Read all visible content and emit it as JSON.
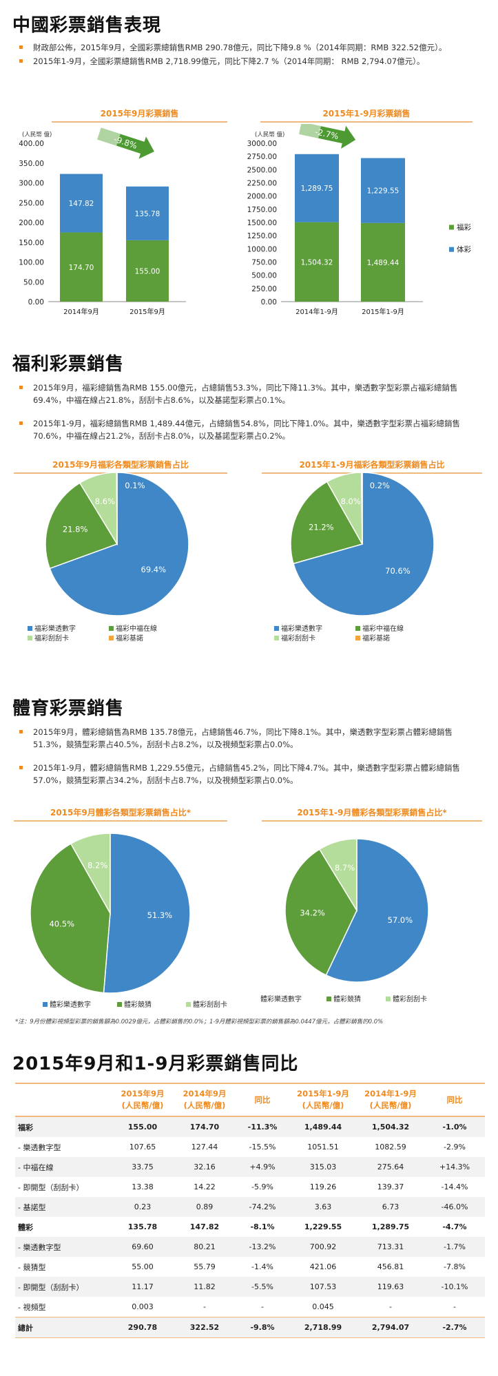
{
  "section1": {
    "title": "中國彩票銷售表現",
    "bullets": [
      "財政部公佈，2015年9月，全國彩票總銷售RMB 290.78億元，同比下降9.8 %（2014年同期：RMB 322.52億元）。",
      "2015年1-9月，全國彩票總銷售RMB 2,718.99億元，同比下降2.7 %（2014年同期： RMB 2,794.07億元）。"
    ],
    "legend": [
      "福彩",
      "体彩"
    ]
  },
  "section2": {
    "title": "福利彩票銷售",
    "bullets": [
      "2015年9月，福彩總銷售為RMB 155.00億元，占總銷售53.3%，同比下降11.3%。其中，樂透數字型彩票占福彩總銷售69.4%，中福在線占21.8%，刮刮卡占8.6%，以及基諾型彩票占0.1%。",
      "2015年1-9月，福彩總銷售RMB 1,489.44億元，占總銷售54.8%，同比下降1.0%。其中，樂透數字型彩票占福彩總銷售70.6%，中福在線占21.2%，刮刮卡占8.0%，以及基諾型彩票占0.2%。"
    ]
  },
  "section3": {
    "title": "體育彩票銷售",
    "bullets": [
      "2015年9月，體彩總銷售為RMB 135.78億元，占總銷售46.7%，同比下降8.1%。其中，樂透數字型彩票占體彩總銷售51.3%，競猜型彩票占40.5%，刮刮卡占8.2%，以及視頻型彩票占0.0%。",
      "2015年1-9月，體彩總銷售RMB 1,229.55億元，占總銷售45.2%，同比下降4.7%。其中，樂透數字型彩票占體彩總銷售57.0%，競猜型彩票占34.2%，刮刮卡占8.7%，以及視頻型彩票占0.0%。"
    ],
    "note": "*注：9月份體彩視頻型彩票的銷售額為0.0029億元，占體彩銷售的0.0%；1-9月體彩視頻型彩票的銷售額為0.0447億元，占體彩銷售的0.0%"
  },
  "section4": {
    "title": "2015年9月和1-9月彩票銷售同比",
    "headers": [
      "",
      "2015年9月\n(人民幣/億)",
      "2014年9月\n(人民幣/億)",
      "同比",
      "2015年1-9月\n(人民幣/億)",
      "2014年1-9月\n(人民幣/億)",
      "同比"
    ],
    "rows": [
      {
        "bold": true,
        "cells": [
          "福彩",
          "155.00",
          "174.70",
          "-11.3%",
          "1,489.44",
          "1,504.32",
          "-1.0%"
        ]
      },
      {
        "bold": false,
        "cells": [
          "- 樂透數字型",
          "107.65",
          "127.44",
          "-15.5%",
          "1051.51",
          "1082.59",
          "-2.9%"
        ]
      },
      {
        "bold": false,
        "cells": [
          "- 中福在線",
          "33.75",
          "32.16",
          "+4.9%",
          "315.03",
          "275.64",
          "+14.3%"
        ]
      },
      {
        "bold": false,
        "cells": [
          "- 即開型（刮刮卡）",
          "13.38",
          "14.22",
          "-5.9%",
          "119.26",
          "139.37",
          "-14.4%"
        ]
      },
      {
        "bold": false,
        "cells": [
          "- 基諾型",
          "0.23",
          "0.89",
          "-74.2%",
          "3.63",
          "6.73",
          "-46.0%"
        ]
      },
      {
        "bold": true,
        "cells": [
          "體彩",
          "135.78",
          "147.82",
          "-8.1%",
          "1,229.55",
          "1,289.75",
          "-4.7%"
        ]
      },
      {
        "bold": false,
        "cells": [
          "- 樂透數字型",
          "69.60",
          "80.21",
          "-13.2%",
          "700.92",
          "713.31",
          "-1.7%"
        ]
      },
      {
        "bold": false,
        "cells": [
          "- 競猜型",
          "55.00",
          "55.79",
          "-1.4%",
          "421.06",
          "456.81",
          "-7.8%"
        ]
      },
      {
        "bold": false,
        "cells": [
          "- 即開型（刮刮卡）",
          "11.17",
          "11.82",
          "-5.5%",
          "107.53",
          "119.63",
          "-10.1%"
        ]
      },
      {
        "bold": false,
        "cells": [
          "- 視頻型",
          "0.003",
          "-",
          "-",
          "0.045",
          "-",
          "-"
        ]
      },
      {
        "bold": true,
        "total": true,
        "cells": [
          "總計",
          "290.78",
          "322.52",
          "-9.8%",
          "2,718.99",
          "2,794.07",
          "-2.7%"
        ]
      }
    ]
  },
  "colors": {
    "fucai": "#5d9e3a",
    "ticai": "#3f87c6",
    "accent": "#ef8a1f",
    "scratch": "#b4dc9a",
    "keno": "#f5a43b"
  },
  "chart_data": [
    {
      "type": "bar",
      "stacked": true,
      "title": "2015年9月彩票銷售",
      "ylabel": "(人民幣 億)",
      "categories": [
        "2014年9月",
        "2015年9月"
      ],
      "series": [
        {
          "name": "福彩",
          "values": [
            174.7,
            155.0
          ],
          "labels": [
            "174.70",
            "155.00"
          ],
          "color": "#5d9e3a"
        },
        {
          "name": "体彩",
          "values": [
            147.82,
            135.78
          ],
          "labels": [
            "147.82",
            "135.78"
          ],
          "color": "#3f87c6"
        }
      ],
      "ylim": [
        0,
        400
      ],
      "yticks": [
        "0.00",
        "50.00",
        "100.00",
        "150.00",
        "200.00",
        "250.00",
        "300.00",
        "350.00",
        "400.00"
      ],
      "annotation": "-9.8%"
    },
    {
      "type": "bar",
      "stacked": true,
      "title": "2015年1-9月彩票銷售",
      "ylabel": "(人民幣 億)",
      "categories": [
        "2014年1-9月",
        "2015年1-9月"
      ],
      "series": [
        {
          "name": "福彩",
          "values": [
            1504.32,
            1489.44
          ],
          "labels": [
            "1,504.32",
            "1,489.44"
          ],
          "color": "#5d9e3a"
        },
        {
          "name": "体彩",
          "values": [
            1289.75,
            1229.55
          ],
          "labels": [
            "1,289.75",
            "1,229.55"
          ],
          "color": "#3f87c6"
        }
      ],
      "ylim": [
        0,
        3000
      ],
      "yticks": [
        "0.00",
        "250.00",
        "500.00",
        "750.00",
        "1000.00",
        "1250.00",
        "1500.00",
        "1750.00",
        "2000.00",
        "2250.00",
        "2500.00",
        "2750.00",
        "3000.00"
      ],
      "annotation": "-2.7%",
      "legend": [
        "福彩",
        "体彩"
      ]
    },
    {
      "type": "pie",
      "title": "2015年9月福彩各類型彩票銷售占比",
      "slices": [
        {
          "name": "福彩樂透數字",
          "value": 69.4,
          "label": "69.4%",
          "color": "#3f87c6"
        },
        {
          "name": "福彩中福在線",
          "value": 21.8,
          "label": "21.8%",
          "color": "#5d9e3a"
        },
        {
          "name": "福彩刮刮卡",
          "value": 8.6,
          "label": "8.6%",
          "color": "#b4dc9a"
        },
        {
          "name": "福彩基諾",
          "value": 0.1,
          "label": "0.1%",
          "color": "#f5a43b"
        }
      ]
    },
    {
      "type": "pie",
      "title": "2015年1-9月福彩各類型彩票銷售占比",
      "slices": [
        {
          "name": "福彩樂透數字",
          "value": 70.6,
          "label": "70.6%",
          "color": "#3f87c6"
        },
        {
          "name": "福彩中福在線",
          "value": 21.2,
          "label": "21.2%",
          "color": "#5d9e3a"
        },
        {
          "name": "福彩刮刮卡",
          "value": 8.0,
          "label": "8.0%",
          "color": "#b4dc9a"
        },
        {
          "name": "福彩基諾",
          "value": 0.2,
          "label": "0.2%",
          "color": "#f5a43b"
        }
      ]
    },
    {
      "type": "pie",
      "title": "2015年9月體彩各類型彩票銷售占比*",
      "slices": [
        {
          "name": "體彩樂透數字",
          "value": 51.3,
          "label": "51.3%",
          "color": "#3f87c6"
        },
        {
          "name": "體彩競猜",
          "value": 40.5,
          "label": "40.5%",
          "color": "#5d9e3a"
        },
        {
          "name": "體彩刮刮卡",
          "value": 8.2,
          "label": "8.2%",
          "color": "#b4dc9a"
        }
      ]
    },
    {
      "type": "pie",
      "title": "2015年1-9月體彩各類型彩票銷售占比*",
      "slices": [
        {
          "name": "體彩樂透數字",
          "value": 57.0,
          "label": "57.0%",
          "color": "#3f87c6"
        },
        {
          "name": "體彩競猜",
          "value": 34.2,
          "label": "34.2%",
          "color": "#5d9e3a"
        },
        {
          "name": "體彩刮刮卡",
          "value": 8.7,
          "label": "8.7%",
          "color": "#b4dc9a"
        }
      ]
    }
  ]
}
